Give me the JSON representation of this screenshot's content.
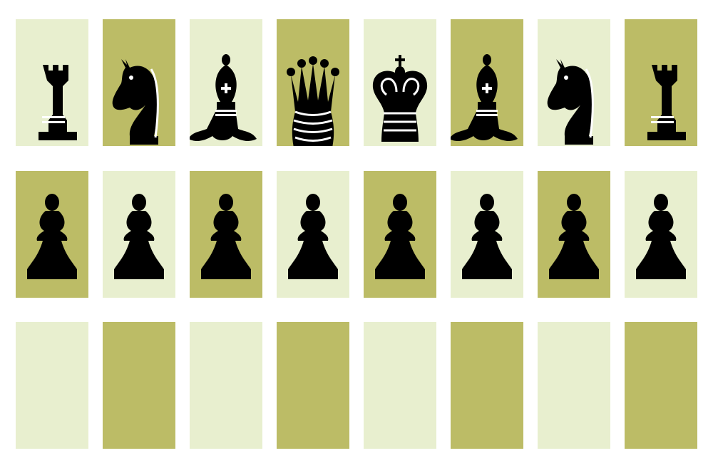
{
  "board": {
    "colors": {
      "light": "#e8efcf",
      "dark": "#bcbc66",
      "piece": "#000000"
    },
    "rows": [
      [
        {
          "color": "light",
          "piece": "black-rook"
        },
        {
          "color": "dark",
          "piece": "black-knight"
        },
        {
          "color": "light",
          "piece": "black-bishop"
        },
        {
          "color": "dark",
          "piece": "black-queen"
        },
        {
          "color": "light",
          "piece": "black-king"
        },
        {
          "color": "dark",
          "piece": "black-bishop"
        },
        {
          "color": "light",
          "piece": "black-knight"
        },
        {
          "color": "dark",
          "piece": "black-rook"
        }
      ],
      [
        {
          "color": "dark",
          "piece": "black-pawn"
        },
        {
          "color": "light",
          "piece": "black-pawn"
        },
        {
          "color": "dark",
          "piece": "black-pawn"
        },
        {
          "color": "light",
          "piece": "black-pawn"
        },
        {
          "color": "dark",
          "piece": "black-pawn"
        },
        {
          "color": "light",
          "piece": "black-pawn"
        },
        {
          "color": "dark",
          "piece": "black-pawn"
        },
        {
          "color": "light",
          "piece": "black-pawn"
        }
      ],
      [
        {
          "color": "light",
          "piece": null
        },
        {
          "color": "dark",
          "piece": null
        },
        {
          "color": "light",
          "piece": null
        },
        {
          "color": "dark",
          "piece": null
        },
        {
          "color": "light",
          "piece": null
        },
        {
          "color": "dark",
          "piece": null
        },
        {
          "color": "light",
          "piece": null
        },
        {
          "color": "dark",
          "piece": null
        }
      ]
    ]
  }
}
